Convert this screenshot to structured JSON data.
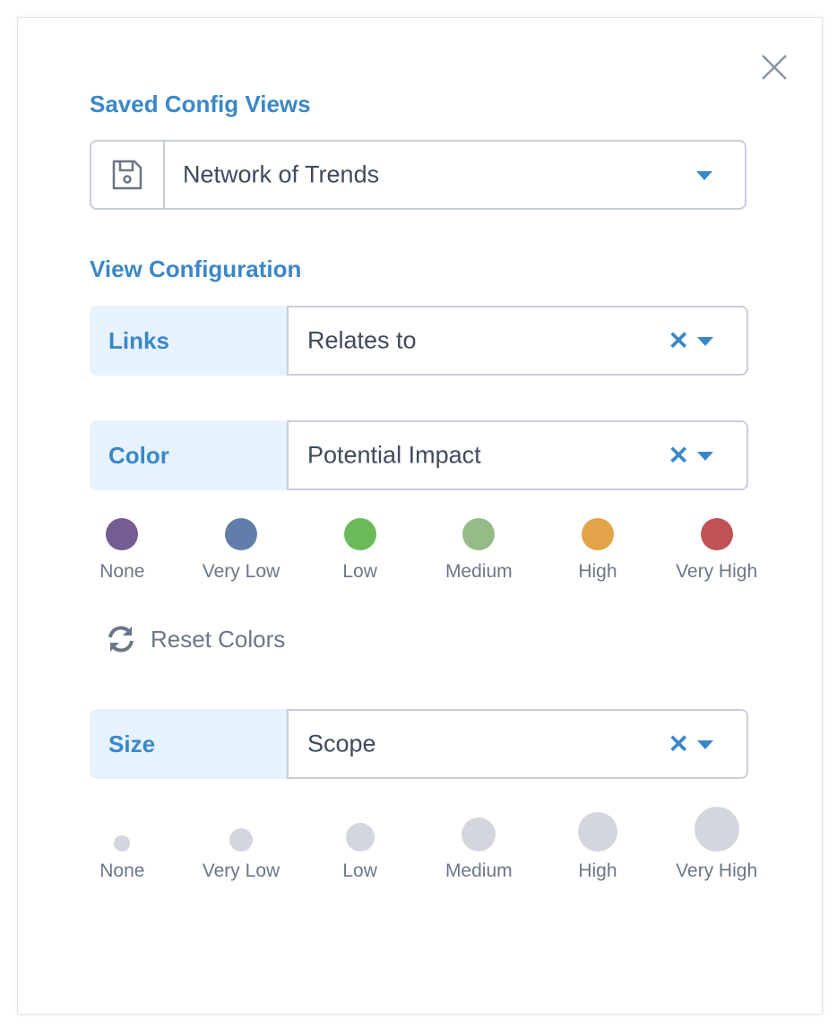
{
  "saved_views": {
    "heading": "Saved Config Views",
    "selected": "Network of Trends",
    "icon": "floppy-disk-icon"
  },
  "view_config": {
    "heading": "View Configuration",
    "links": {
      "label": "Links",
      "value": "Relates to"
    },
    "color": {
      "label": "Color",
      "value": "Potential Impact"
    },
    "size": {
      "label": "Size",
      "value": "Scope"
    },
    "clear_glyph": "✕"
  },
  "color_legend": [
    {
      "label": "None",
      "color": "#735d92"
    },
    {
      "label": "Very Low",
      "color": "#617eab"
    },
    {
      "label": "Low",
      "color": "#6aba59"
    },
    {
      "label": "Medium",
      "color": "#96ba88"
    },
    {
      "label": "High",
      "color": "#e3a348"
    },
    {
      "label": "Very High",
      "color": "#c25155"
    }
  ],
  "reset_colors": "Reset Colors",
  "size_legend": [
    {
      "label": "None"
    },
    {
      "label": "Very Low"
    },
    {
      "label": "Low"
    },
    {
      "label": "Medium"
    },
    {
      "label": "High"
    },
    {
      "label": "Very High"
    }
  ],
  "size_color": "#d3d6dc",
  "accent": "#3a87c8"
}
